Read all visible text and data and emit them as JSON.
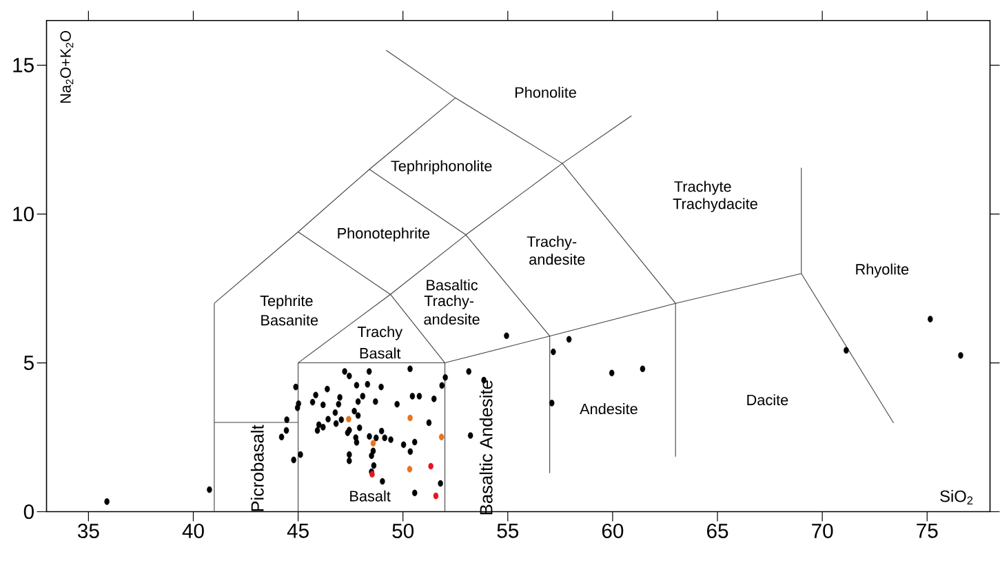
{
  "chart_data": {
    "type": "scatter",
    "xlabel": "SiO$_{2}$",
    "ylabel": "Na$_{2}$O+K$_{2}$O",
    "xlim": [
      33,
      78
    ],
    "ylim": [
      0,
      16.5
    ],
    "xticks": [
      35,
      40,
      45,
      50,
      55,
      60,
      65,
      70,
      75
    ],
    "yticks": [
      0,
      5,
      10,
      15
    ],
    "marker": "circle",
    "series": [
      {
        "color": "#000000",
        "x": [
          35.88,
          40.77,
          44.89,
          45.02,
          44.97,
          44.46,
          44.44,
          44.21,
          45.11,
          44.79,
          47.22,
          47.44,
          48.39,
          50.34,
          46.39,
          45.84,
          45.69,
          46.19,
          46.99,
          46.93,
          47.79,
          48.31,
          48.96,
          48.08,
          47.86,
          48.69,
          49.72,
          50.45,
          50.78,
          51.48,
          51.86,
          52.02,
          46.77,
          47.06,
          46.43,
          45.99,
          45.92,
          46.19,
          46.81,
          47.68,
          47.86,
          47.93,
          47.44,
          47.36,
          47.75,
          47.79,
          48.4,
          48.72,
          48.98,
          49.13,
          49.42,
          48.58,
          47.44,
          47.44,
          48.5,
          48.61,
          48.5,
          49.02,
          50.03,
          50.35,
          50.56,
          51.24,
          50.56,
          51.79,
          53.14,
          53.22,
          54.94,
          53.86,
          57.17,
          57.92,
          57.1,
          59.96,
          61.43,
          71.14,
          75.15,
          76.6
        ],
        "values": [
          0.34,
          0.74,
          4.19,
          3.63,
          3.49,
          3.09,
          2.73,
          2.51,
          1.92,
          1.74,
          4.71,
          4.56,
          4.71,
          4.8,
          4.12,
          3.92,
          3.68,
          3.59,
          3.84,
          3.61,
          4.25,
          4.28,
          4.19,
          3.88,
          3.7,
          3.7,
          3.61,
          3.88,
          3.88,
          3.79,
          4.24,
          4.51,
          3.33,
          3.09,
          3.11,
          2.92,
          2.73,
          2.84,
          2.96,
          3.38,
          3.23,
          2.82,
          2.74,
          2.65,
          2.49,
          2.33,
          2.53,
          2.48,
          2.71,
          2.48,
          2.42,
          2.04,
          1.92,
          1.71,
          1.88,
          1.55,
          1.34,
          1.02,
          2.25,
          2.02,
          2.34,
          2.99,
          0.63,
          0.95,
          4.71,
          2.56,
          5.91,
          4.42,
          5.37,
          5.79,
          3.65,
          4.66,
          4.8,
          5.42,
          6.47,
          5.25
        ]
      },
      {
        "color": "#e8731e",
        "x": [
          47.41,
          48.58,
          50.34,
          51.84,
          50.32
        ],
        "values": [
          3.11,
          2.3,
          3.15,
          2.51,
          1.43
        ]
      },
      {
        "color": "#e8141e",
        "x": [
          48.53,
          51.33,
          51.57
        ],
        "values": [
          1.26,
          1.53,
          0.53
        ]
      },
      {
        "type": "line",
        "marker": "none",
        "color": "#404040",
        "x": [
          41,
          41
        ],
        "values": [
          0,
          7
        ]
      },
      {
        "type": "line",
        "marker": "none",
        "color": "#404040",
        "x": [
          41,
          45
        ],
        "values": [
          3,
          3
        ]
      },
      {
        "type": "line",
        "marker": "none",
        "color": "#404040",
        "x": [
          41,
          45,
          48.4,
          52.5
        ],
        "values": [
          7,
          9.4,
          11.5,
          13.9
        ]
      },
      {
        "type": "line",
        "marker": "none",
        "color": "#404040",
        "x": [
          45,
          45,
          52,
          52
        ],
        "values": [
          0,
          5,
          5,
          0
        ]
      },
      {
        "type": "line",
        "marker": "none",
        "color": "#404040",
        "x": [
          45,
          49.4,
          53,
          57.6,
          60.9
        ],
        "values": [
          5,
          7.3,
          9.3,
          11.7,
          13.3
        ]
      },
      {
        "type": "line",
        "marker": "none",
        "color": "#404040",
        "x": [
          52,
          57,
          63,
          69,
          69
        ],
        "values": [
          5,
          5.9,
          7,
          8,
          11.55
        ]
      },
      {
        "type": "line",
        "marker": "none",
        "color": "#404040",
        "x": [
          45,
          49.4,
          52
        ],
        "values": [
          9.4,
          7.3,
          5
        ]
      },
      {
        "type": "line",
        "marker": "none",
        "color": "#404040",
        "x": [
          48.4,
          53,
          57
        ],
        "values": [
          11.5,
          9.3,
          5.9
        ]
      },
      {
        "type": "line",
        "marker": "none",
        "color": "#404040",
        "x": [
          49.2,
          52.5,
          57.6,
          63
        ],
        "values": [
          15.5,
          13.9,
          11.7,
          7
        ]
      },
      {
        "type": "line",
        "marker": "none",
        "color": "#404040",
        "x": [
          57,
          57
        ],
        "values": [
          1.3,
          5.9
        ]
      },
      {
        "type": "line",
        "marker": "none",
        "color": "#404040",
        "x": [
          63,
          63
        ],
        "values": [
          1.85,
          7
        ]
      },
      {
        "type": "line",
        "marker": "none",
        "color": "#404040",
        "x": [
          69,
          73.4
        ],
        "values": [
          8,
          2.98
        ]
      }
    ],
    "annotations": [
      "Phonolite",
      "Tephriphonolite",
      "Trachyte",
      "Trachydacite",
      "Phonotephrite",
      "Trachy-",
      "andesite",
      "Rhyolite",
      "Tephrite",
      "Basanite",
      "Basaltic",
      "Trachy-",
      "andesite",
      "Trachy",
      "Basalt",
      "Andesite",
      "Dacite",
      "Basalt",
      "Picrobasalt",
      "Basaltic Andesite"
    ]
  }
}
